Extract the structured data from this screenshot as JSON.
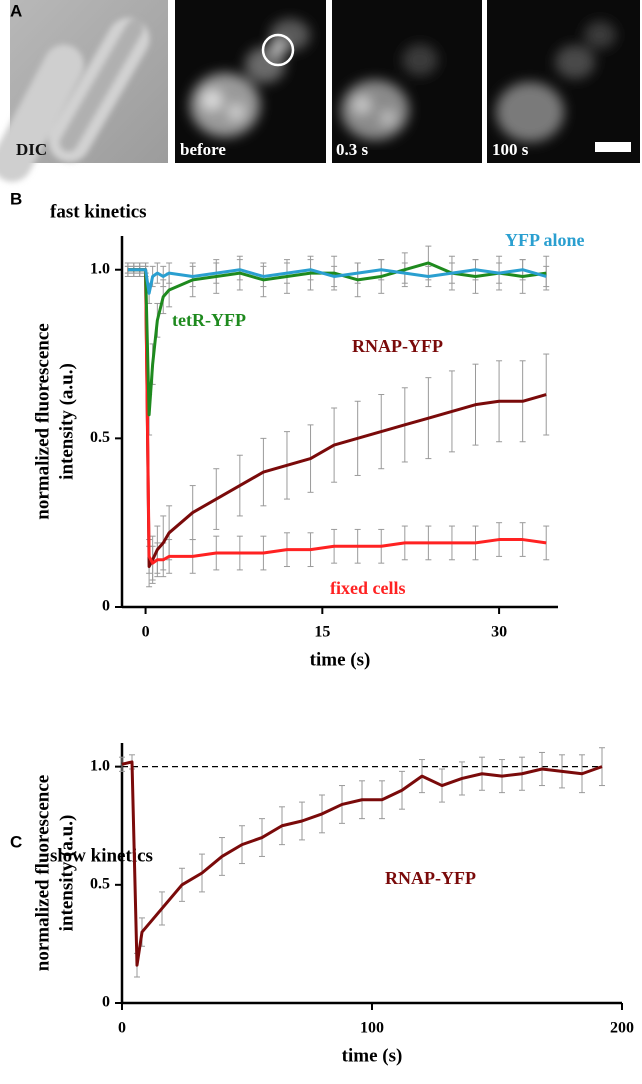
{
  "figure": {
    "panel_a": {
      "label": "A",
      "images": [
        "DIC",
        "before",
        "0.3 s",
        "100 s"
      ]
    }
  },
  "chart_data": [
    {
      "type": "line",
      "panel": "B",
      "title": "fast kinetics",
      "xlabel": "time (s)",
      "ylabel": [
        "normalized fluorescence",
        "intensity (a.u.)"
      ],
      "xlim": [
        -2,
        35
      ],
      "xticks": [
        0,
        15,
        30
      ],
      "ylim": [
        0,
        1.1
      ],
      "yticks": [
        0,
        0.5,
        {
          "value": 1,
          "label": "1.0"
        }
      ],
      "x": [
        -1.5,
        -1,
        -0.5,
        0,
        0.3,
        0.6,
        1,
        1.5,
        2,
        4,
        6,
        8,
        10,
        12,
        14,
        16,
        18,
        20,
        22,
        24,
        26,
        28,
        30,
        32,
        34
      ],
      "series": [
        {
          "name": "RNAP-YFP",
          "color": "#7a0a0a",
          "values": [
            1,
            1,
            1,
            1,
            0.12,
            0.14,
            0.17,
            0.19,
            0.22,
            0.28,
            0.32,
            0.36,
            0.4,
            0.42,
            0.44,
            0.48,
            0.5,
            0.52,
            0.54,
            0.56,
            0.58,
            0.6,
            0.61,
            0.61,
            0.63
          ],
          "errors": [
            0.01,
            0.01,
            0.01,
            0.01,
            0.06,
            0.07,
            0.07,
            0.08,
            0.08,
            0.08,
            0.09,
            0.09,
            0.1,
            0.1,
            0.1,
            0.11,
            0.11,
            0.11,
            0.11,
            0.12,
            0.12,
            0.12,
            0.12,
            0.12,
            0.12
          ]
        },
        {
          "name": "fixed cells",
          "color": "#ff2222",
          "values": [
            1,
            1,
            1,
            1,
            0.15,
            0.13,
            0.14,
            0.14,
            0.15,
            0.15,
            0.16,
            0.16,
            0.16,
            0.17,
            0.17,
            0.18,
            0.18,
            0.18,
            0.19,
            0.19,
            0.19,
            0.19,
            0.2,
            0.2,
            0.19
          ],
          "errors": [
            0.01,
            0.01,
            0.01,
            0.01,
            0.05,
            0.05,
            0.05,
            0.05,
            0.05,
            0.05,
            0.05,
            0.05,
            0.05,
            0.05,
            0.05,
            0.05,
            0.05,
            0.05,
            0.05,
            0.05,
            0.05,
            0.05,
            0.05,
            0.05,
            0.05
          ]
        },
        {
          "name": "tetR-YFP",
          "color": "#1e8a1e",
          "values": [
            1,
            1,
            1,
            1,
            0.57,
            0.72,
            0.85,
            0.92,
            0.94,
            0.97,
            0.98,
            0.99,
            0.97,
            0.98,
            0.99,
            0.99,
            0.97,
            0.98,
            1,
            1.02,
            0.99,
            0.98,
            0.99,
            0.98,
            0.99
          ],
          "errors": [
            0.02,
            0.02,
            0.02,
            0.02,
            0.06,
            0.06,
            0.05,
            0.05,
            0.05,
            0.05,
            0.05,
            0.05,
            0.05,
            0.05,
            0.05,
            0.05,
            0.05,
            0.05,
            0.05,
            0.05,
            0.05,
            0.05,
            0.05,
            0.05,
            0.05
          ]
        },
        {
          "name": "YFP alone",
          "color": "#2a9fd0",
          "values": [
            1,
            1,
            1,
            1,
            0.93,
            0.98,
            0.99,
            0.98,
            0.99,
            0.98,
            0.99,
            1,
            0.98,
            0.99,
            1,
            0.98,
            0.99,
            1,
            0.99,
            0.98,
            0.99,
            1,
            0.99,
            1,
            0.98
          ],
          "errors": [
            0.02,
            0.02,
            0.02,
            0.02,
            0.03,
            0.03,
            0.03,
            0.03,
            0.03,
            0.03,
            0.03,
            0.03,
            0.03,
            0.03,
            0.03,
            0.03,
            0.03,
            0.03,
            0.03,
            0.03,
            0.03,
            0.03,
            0.03,
            0.03,
            0.03
          ]
        }
      ]
    },
    {
      "type": "line",
      "panel": "C",
      "title": "slow kinetics",
      "xlabel": "time (s)",
      "ylabel": [
        "normalized fluorescence",
        "intensity (a.u.)"
      ],
      "xlim": [
        0,
        200
      ],
      "xticks": [
        0,
        100,
        200
      ],
      "ylim": [
        0,
        1.1
      ],
      "yticks": [
        0,
        0.5,
        {
          "value": 1,
          "label": "1.0"
        }
      ],
      "reference_line": 1,
      "x": [
        0,
        4,
        6,
        8,
        16,
        24,
        32,
        40,
        48,
        56,
        64,
        72,
        80,
        88,
        96,
        104,
        112,
        120,
        128,
        136,
        144,
        152,
        160,
        168,
        176,
        184,
        192
      ],
      "series": [
        {
          "name": "RNAP-YFP",
          "color": "#7a0a0a",
          "values": [
            1.01,
            1.02,
            0.16,
            0.3,
            0.4,
            0.5,
            0.55,
            0.62,
            0.67,
            0.7,
            0.75,
            0.77,
            0.8,
            0.84,
            0.86,
            0.86,
            0.9,
            0.96,
            0.92,
            0.95,
            0.97,
            0.96,
            0.97,
            0.99,
            0.98,
            0.97,
            1
          ],
          "errors": [
            0.03,
            0.03,
            0.05,
            0.06,
            0.07,
            0.07,
            0.08,
            0.08,
            0.08,
            0.08,
            0.08,
            0.08,
            0.08,
            0.08,
            0.08,
            0.08,
            0.08,
            0.07,
            0.07,
            0.07,
            0.07,
            0.07,
            0.07,
            0.07,
            0.07,
            0.08,
            0.08
          ]
        }
      ]
    }
  ]
}
